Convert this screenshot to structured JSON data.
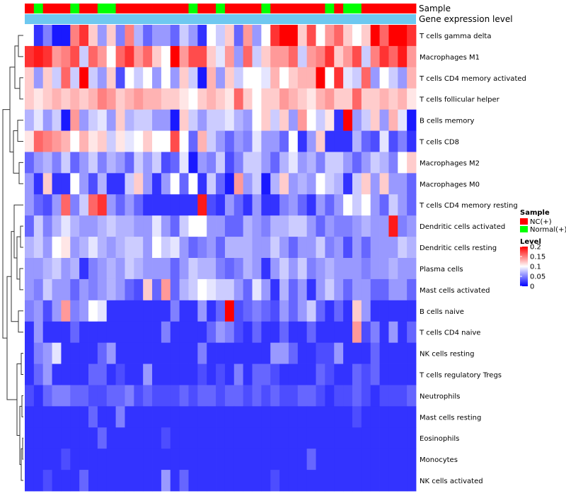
{
  "chart_data": {
    "type": "heatmap",
    "title": "",
    "annotation_labels": [
      "Sample",
      "Gene expression level"
    ],
    "row_labels": [
      "T cells gamma delta",
      "Macrophages M1",
      "T cells CD4 memory activated",
      "T cells follicular helper",
      "B cells memory",
      "T cells CD8",
      "Macrophages M2",
      "Macrophages M0",
      "T cells CD4 memory resting",
      "Dendritic cells activated",
      "Dendritic cells resting",
      "Plasma cells",
      "Mast cells activated",
      "B cells naive",
      "T cells CD4 naive",
      "NK cells resting",
      "T cells regulatory  Tregs",
      "Neutrophils",
      "Mast cells resting",
      "Eosinophils",
      "Monocytes",
      "NK cells activated"
    ],
    "sample_groups": [
      "NC",
      "Normal",
      "NC",
      "NC",
      "NC",
      "Normal",
      "NC",
      "NC",
      "Normal",
      "Normal",
      "NC",
      "NC",
      "NC",
      "NC",
      "NC",
      "NC",
      "NC",
      "NC",
      "Normal",
      "NC",
      "NC",
      "Normal",
      "NC",
      "NC",
      "NC",
      "NC",
      "Normal",
      "NC",
      "NC",
      "NC",
      "NC",
      "NC",
      "NC",
      "Normal",
      "NC",
      "Normal",
      "Normal",
      "NC",
      "NC",
      "NC",
      "NC",
      "NC",
      "NC"
    ],
    "group_colors": {
      "NC": "#FF0000",
      "Normal": "#00FF00"
    },
    "expression_bar_color": "#6EC8F0",
    "legend": {
      "sample_title": "Sample",
      "sample_entries": [
        {
          "label": "NC(+)",
          "color": "#FF0000"
        },
        {
          "label": "Normal(+)",
          "color": "#00FF00"
        }
      ],
      "level_title": "Level",
      "level_ticks": [
        "0.2",
        "0.15",
        "0.1",
        "0.05",
        "0"
      ],
      "level_tick_values": [
        0.2,
        0.15,
        0.1,
        0.05,
        0
      ]
    },
    "color_scale": {
      "min": 0,
      "mid": 0.1,
      "max": 0.2,
      "low": "#0000FF",
      "midColor": "#FFFFFF",
      "high": "#FF0000"
    },
    "values": [
      [
        0.1,
        0.02,
        0.05,
        0.01,
        0.01,
        0.15,
        0.18,
        0.12,
        0.06,
        0.12,
        0.05,
        0.15,
        0.07,
        0.04,
        0.06,
        0.06,
        0.04,
        0.08,
        0.06,
        0.02,
        0.1,
        0.08,
        0.12,
        0.04,
        0.14,
        0.06,
        0.1,
        0.18,
        0.2,
        0.2,
        0.12,
        0.17,
        0.1,
        0.14,
        0.16,
        0.12,
        0.1,
        0.12,
        0.2,
        0.16,
        0.2,
        0.2,
        0.18
      ],
      [
        0.18,
        0.19,
        0.18,
        0.14,
        0.15,
        0.17,
        0.08,
        0.16,
        0.14,
        0.1,
        0.16,
        0.18,
        0.14,
        0.16,
        0.12,
        0.1,
        0.2,
        0.14,
        0.17,
        0.17,
        0.12,
        0.09,
        0.14,
        0.06,
        0.16,
        0.08,
        0.12,
        0.14,
        0.14,
        0.16,
        0.08,
        0.14,
        0.15,
        0.18,
        0.12,
        0.14,
        0.17,
        0.08,
        0.15,
        0.18,
        0.16,
        0.19,
        0.14
      ],
      [
        0.12,
        0.06,
        0.12,
        0.08,
        0.16,
        0.08,
        0.2,
        0.08,
        0.06,
        0.12,
        0.03,
        0.1,
        0.08,
        0.1,
        0.06,
        0.1,
        0.06,
        0.12,
        0.08,
        0.01,
        0.13,
        0.06,
        0.12,
        0.08,
        0.1,
        0.1,
        0.09,
        0.13,
        0.1,
        0.12,
        0.13,
        0.13,
        0.2,
        0.1,
        0.18,
        0.09,
        0.08,
        0.16,
        0.06,
        0.1,
        0.08,
        0.06,
        0.13
      ],
      [
        0.12,
        0.11,
        0.12,
        0.13,
        0.12,
        0.13,
        0.12,
        0.13,
        0.15,
        0.14,
        0.12,
        0.13,
        0.14,
        0.13,
        0.13,
        0.12,
        0.12,
        0.11,
        0.1,
        0.12,
        0.13,
        0.12,
        0.11,
        0.16,
        0.12,
        0.1,
        0.12,
        0.12,
        0.14,
        0.13,
        0.12,
        0.11,
        0.13,
        0.14,
        0.12,
        0.12,
        0.16,
        0.12,
        0.12,
        0.13,
        0.12,
        0.13,
        0.11
      ],
      [
        0.07,
        0.09,
        0.06,
        0.08,
        0.01,
        0.14,
        0.06,
        0.08,
        0.09,
        0.06,
        0.12,
        0.07,
        0.08,
        0.08,
        0.06,
        0.06,
        0.01,
        0.12,
        0.08,
        0.06,
        0.08,
        0.08,
        0.09,
        0.07,
        0.06,
        0.1,
        0.12,
        0.08,
        0.12,
        0.06,
        0.14,
        0.1,
        0.08,
        0.11,
        0.02,
        0.2,
        0.06,
        0.08,
        0.12,
        0.06,
        0.13,
        0.09,
        0.01
      ],
      [
        0.11,
        0.16,
        0.15,
        0.14,
        0.13,
        0.1,
        0.13,
        0.11,
        0.12,
        0.08,
        0.11,
        0.09,
        0.1,
        0.12,
        0.1,
        0.1,
        0.17,
        0.1,
        0.04,
        0.13,
        0.08,
        0.06,
        0.04,
        0.06,
        0.05,
        0.09,
        0.06,
        0.06,
        0.04,
        0.1,
        0.02,
        0.06,
        0.12,
        0.02,
        0.02,
        0.02,
        0.07,
        0.04,
        0.03,
        0.09,
        0.03,
        0.05,
        0.02
      ],
      [
        0.04,
        0.06,
        0.07,
        0.05,
        0.08,
        0.04,
        0.06,
        0.08,
        0.05,
        0.07,
        0.06,
        0.04,
        0.08,
        0.06,
        0.08,
        0.03,
        0.04,
        0.09,
        0.01,
        0.06,
        0.05,
        0.08,
        0.03,
        0.05,
        0.08,
        0.08,
        0.06,
        0.04,
        0.07,
        0.09,
        0.06,
        0.07,
        0.05,
        0.08,
        0.08,
        0.06,
        0.04,
        0.06,
        0.08,
        0.07,
        0.05,
        0.1,
        0.12
      ],
      [
        0.06,
        0.02,
        0.12,
        0.02,
        0.02,
        0.1,
        0.06,
        0.03,
        0.07,
        0.02,
        0.02,
        0.08,
        0.12,
        0.06,
        0.02,
        0.06,
        0.1,
        0.04,
        0.1,
        0.02,
        0.08,
        0.04,
        0.01,
        0.14,
        0.06,
        0.08,
        0.01,
        0.07,
        0.12,
        0.06,
        0.07,
        0.06,
        0.1,
        0.08,
        0.07,
        0.02,
        0.08,
        0.12,
        0.06,
        0.12,
        0.06,
        0.06,
        0.04
      ],
      [
        0.06,
        0.04,
        0.03,
        0.06,
        0.16,
        0.05,
        0.08,
        0.16,
        0.18,
        0.06,
        0.04,
        0.06,
        0.04,
        0.02,
        0.02,
        0.02,
        0.02,
        0.02,
        0.02,
        0.19,
        0.03,
        0.02,
        0.06,
        0.04,
        0.02,
        0.06,
        0.02,
        0.02,
        0.05,
        0.06,
        0.04,
        0.02,
        0.06,
        0.04,
        0.06,
        0.1,
        0.08,
        0.1,
        0.06,
        0.04,
        0.08,
        0.06,
        0.04
      ],
      [
        0.04,
        0.08,
        0.05,
        0.07,
        0.09,
        0.07,
        0.06,
        0.06,
        0.07,
        0.08,
        0.07,
        0.07,
        0.06,
        0.06,
        0.09,
        0.06,
        0.04,
        0.08,
        0.1,
        0.1,
        0.06,
        0.06,
        0.04,
        0.04,
        0.07,
        0.06,
        0.05,
        0.07,
        0.07,
        0.08,
        0.08,
        0.06,
        0.04,
        0.06,
        0.05,
        0.05,
        0.06,
        0.07,
        0.06,
        0.06,
        0.19,
        0.05,
        0.06
      ],
      [
        0.07,
        0.08,
        0.06,
        0.1,
        0.11,
        0.06,
        0.07,
        0.09,
        0.07,
        0.06,
        0.07,
        0.08,
        0.08,
        0.06,
        0.1,
        0.08,
        0.09,
        0.06,
        0.04,
        0.05,
        0.06,
        0.04,
        0.07,
        0.07,
        0.07,
        0.06,
        0.06,
        0.08,
        0.06,
        0.04,
        0.06,
        0.06,
        0.08,
        0.05,
        0.06,
        0.03,
        0.06,
        0.04,
        0.06,
        0.06,
        0.06,
        0.08,
        0.07
      ],
      [
        0.06,
        0.06,
        0.07,
        0.08,
        0.06,
        0.07,
        0.02,
        0.05,
        0.06,
        0.07,
        0.06,
        0.08,
        0.07,
        0.06,
        0.06,
        0.06,
        0.04,
        0.06,
        0.08,
        0.07,
        0.07,
        0.05,
        0.04,
        0.05,
        0.07,
        0.06,
        0.02,
        0.06,
        0.08,
        0.06,
        0.08,
        0.05,
        0.06,
        0.07,
        0.06,
        0.06,
        0.06,
        0.05,
        0.06,
        0.06,
        0.07,
        0.06,
        0.06
      ],
      [
        0.06,
        0.05,
        0.08,
        0.06,
        0.06,
        0.04,
        0.06,
        0.05,
        0.06,
        0.07,
        0.06,
        0.04,
        0.03,
        0.12,
        0.04,
        0.14,
        0.04,
        0.07,
        0.08,
        0.1,
        0.09,
        0.08,
        0.08,
        0.06,
        0.04,
        0.09,
        0.06,
        0.02,
        0.07,
        0.04,
        0.06,
        0.02,
        0.06,
        0.08,
        0.06,
        0.04,
        0.06,
        0.06,
        0.04,
        0.04,
        0.06,
        0.06,
        0.04
      ],
      [
        0.05,
        0.06,
        0.03,
        0.06,
        0.14,
        0.05,
        0.06,
        0.1,
        0.09,
        0.02,
        0.02,
        0.02,
        0.02,
        0.02,
        0.02,
        0.02,
        0.05,
        0.02,
        0.02,
        0.06,
        0.02,
        0.04,
        0.2,
        0.03,
        0.04,
        0.05,
        0.04,
        0.03,
        0.06,
        0.04,
        0.06,
        0.08,
        0.04,
        0.02,
        0.04,
        0.02,
        0.12,
        0.06,
        0.02,
        0.02,
        0.02,
        0.02,
        0.02
      ],
      [
        0.02,
        0.06,
        0.02,
        0.02,
        0.02,
        0.04,
        0.02,
        0.02,
        0.02,
        0.02,
        0.02,
        0.02,
        0.02,
        0.02,
        0.02,
        0.05,
        0.02,
        0.02,
        0.02,
        0.02,
        0.04,
        0.06,
        0.05,
        0.03,
        0.02,
        0.04,
        0.02,
        0.02,
        0.04,
        0.02,
        0.02,
        0.04,
        0.02,
        0.02,
        0.02,
        0.02,
        0.14,
        0.03,
        0.05,
        0.02,
        0.06,
        0.02,
        0.04
      ],
      [
        0.02,
        0.05,
        0.06,
        0.09,
        0.02,
        0.02,
        0.02,
        0.02,
        0.04,
        0.06,
        0.02,
        0.02,
        0.02,
        0.02,
        0.02,
        0.02,
        0.02,
        0.02,
        0.02,
        0.05,
        0.02,
        0.02,
        0.02,
        0.02,
        0.02,
        0.02,
        0.02,
        0.06,
        0.06,
        0.04,
        0.02,
        0.02,
        0.03,
        0.03,
        0.06,
        0.02,
        0.02,
        0.02,
        0.04,
        0.02,
        0.02,
        0.02,
        0.02
      ],
      [
        0.02,
        0.04,
        0.06,
        0.02,
        0.02,
        0.02,
        0.02,
        0.04,
        0.04,
        0.02,
        0.03,
        0.02,
        0.02,
        0.06,
        0.02,
        0.02,
        0.02,
        0.02,
        0.02,
        0.03,
        0.02,
        0.03,
        0.02,
        0.05,
        0.02,
        0.04,
        0.04,
        0.03,
        0.02,
        0.02,
        0.02,
        0.02,
        0.04,
        0.03,
        0.02,
        0.02,
        0.04,
        0.03,
        0.04,
        0.02,
        0.02,
        0.02,
        0.02
      ],
      [
        0.03,
        0.02,
        0.04,
        0.05,
        0.05,
        0.04,
        0.04,
        0.03,
        0.03,
        0.04,
        0.04,
        0.05,
        0.03,
        0.04,
        0.03,
        0.03,
        0.03,
        0.04,
        0.03,
        0.04,
        0.04,
        0.03,
        0.04,
        0.04,
        0.03,
        0.04,
        0.03,
        0.04,
        0.03,
        0.03,
        0.04,
        0.04,
        0.03,
        0.02,
        0.03,
        0.03,
        0.04,
        0.03,
        0.02,
        0.03,
        0.03,
        0.03,
        0.04
      ],
      [
        0.02,
        0.02,
        0.02,
        0.02,
        0.02,
        0.02,
        0.02,
        0.04,
        0.02,
        0.02,
        0.05,
        0.02,
        0.02,
        0.02,
        0.02,
        0.02,
        0.02,
        0.02,
        0.02,
        0.02,
        0.02,
        0.02,
        0.02,
        0.02,
        0.02,
        0.02,
        0.02,
        0.02,
        0.02,
        0.02,
        0.02,
        0.02,
        0.02,
        0.02,
        0.02,
        0.02,
        0.03,
        0.02,
        0.02,
        0.02,
        0.02,
        0.02,
        0.02
      ],
      [
        0.02,
        0.02,
        0.02,
        0.02,
        0.02,
        0.02,
        0.02,
        0.02,
        0.04,
        0.02,
        0.02,
        0.02,
        0.02,
        0.02,
        0.02,
        0.03,
        0.02,
        0.02,
        0.02,
        0.02,
        0.02,
        0.02,
        0.02,
        0.02,
        0.02,
        0.02,
        0.02,
        0.02,
        0.02,
        0.02,
        0.02,
        0.02,
        0.02,
        0.02,
        0.02,
        0.02,
        0.02,
        0.02,
        0.02,
        0.02,
        0.02,
        0.02,
        0.02
      ],
      [
        0.02,
        0.02,
        0.02,
        0.02,
        0.03,
        0.02,
        0.02,
        0.02,
        0.02,
        0.02,
        0.02,
        0.02,
        0.02,
        0.02,
        0.02,
        0.02,
        0.02,
        0.02,
        0.02,
        0.02,
        0.02,
        0.02,
        0.02,
        0.02,
        0.02,
        0.02,
        0.02,
        0.02,
        0.02,
        0.02,
        0.02,
        0.04,
        0.02,
        0.02,
        0.02,
        0.02,
        0.02,
        0.02,
        0.02,
        0.02,
        0.02,
        0.02,
        0.02
      ],
      [
        0.02,
        0.02,
        0.03,
        0.02,
        0.02,
        0.02,
        0.04,
        0.02,
        0.02,
        0.02,
        0.02,
        0.02,
        0.02,
        0.02,
        0.02,
        0.06,
        0.02,
        0.04,
        0.02,
        0.02,
        0.02,
        0.02,
        0.02,
        0.02,
        0.02,
        0.02,
        0.02,
        0.03,
        0.02,
        0.02,
        0.02,
        0.02,
        0.02,
        0.02,
        0.02,
        0.02,
        0.02,
        0.02,
        0.02,
        0.02,
        0.02,
        0.02,
        0.02
      ]
    ]
  }
}
